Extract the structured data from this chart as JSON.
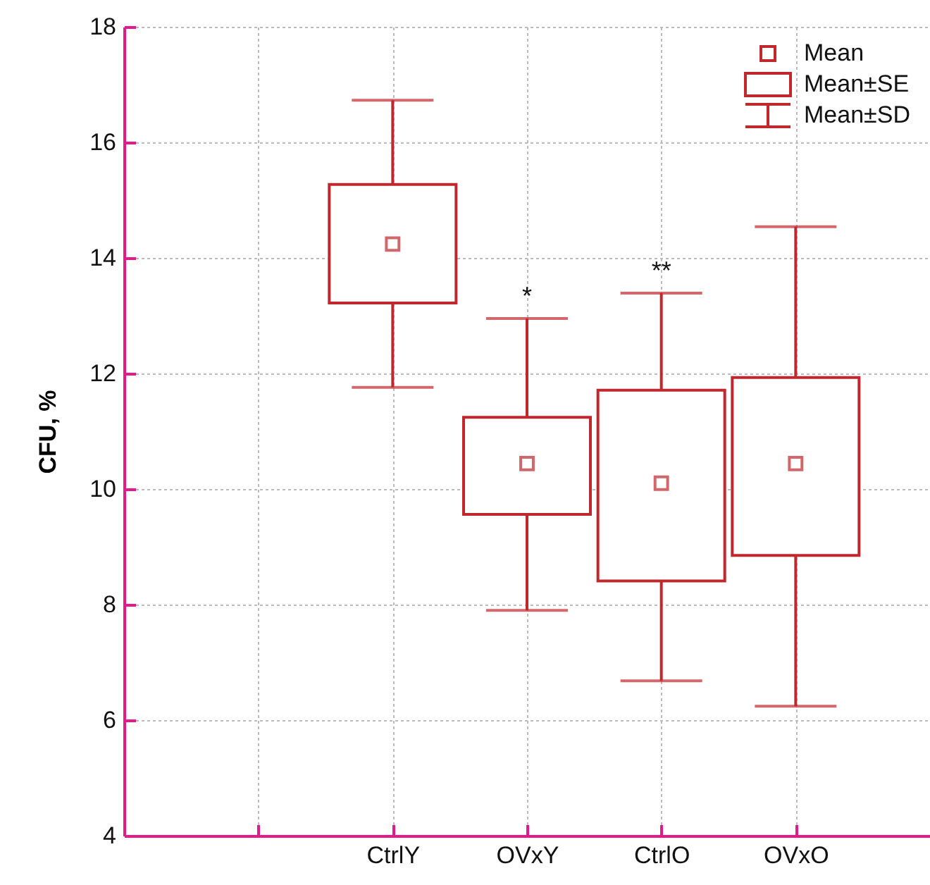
{
  "chart_data": {
    "type": "box",
    "ylabel": "CFU, %",
    "categories": [
      null,
      "CtrlY",
      "OVxY",
      "CtrlO",
      "OVxO"
    ],
    "color": "#c0282d",
    "boxes": [
      null,
      {
        "low": 11.76,
        "q1": 13.22,
        "q3": 15.27,
        "high": 16.73,
        "mean": 14.24
      },
      {
        "low": 7.9,
        "q1": 9.56,
        "q3": 11.24,
        "high": 12.95,
        "mean": 10.44
      },
      {
        "low": 6.68,
        "q1": 8.41,
        "q3": 11.71,
        "high": 13.39,
        "mean": 10.1
      },
      {
        "low": 6.24,
        "q1": 8.85,
        "q3": 11.93,
        "high": 14.54,
        "mean": 10.44
      }
    ],
    "ylim": [
      4,
      18
    ],
    "yticks": [
      4,
      6,
      8,
      10,
      12,
      14,
      16,
      18
    ],
    "grid": true,
    "annotations": [
      "Mean",
      "Mean±SE",
      "Mean±SD",
      {
        "text": "*",
        "x": "OVxY",
        "y": 12.95
      },
      {
        "text": "**",
        "x": "CtrlO",
        "y": 13.39
      }
    ]
  }
}
